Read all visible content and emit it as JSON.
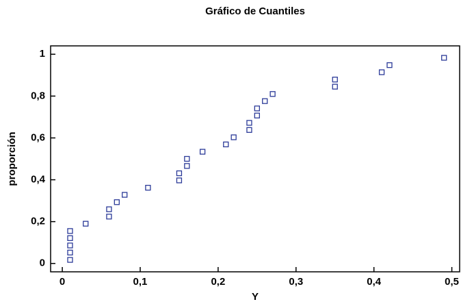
{
  "chart_data": {
    "type": "scatter",
    "title": "Gráfico de Cuantiles",
    "x_label": "Y",
    "y_label": "proporción",
    "x": [
      0.01,
      0.01,
      0.01,
      0.01,
      0.01,
      0.03,
      0.06,
      0.06,
      0.07,
      0.08,
      0.11,
      0.15,
      0.15,
      0.16,
      0.16,
      0.18,
      0.21,
      0.22,
      0.24,
      0.24,
      0.25,
      0.25,
      0.26,
      0.27,
      0.35,
      0.35,
      0.41,
      0.42,
      0.49
    ],
    "values": [
      0.017,
      0.052,
      0.086,
      0.121,
      0.155,
      0.19,
      0.224,
      0.259,
      0.293,
      0.328,
      0.362,
      0.397,
      0.431,
      0.466,
      0.5,
      0.534,
      0.569,
      0.603,
      0.638,
      0.672,
      0.707,
      0.741,
      0.776,
      0.81,
      0.845,
      0.879,
      0.914,
      0.948,
      0.983
    ],
    "color": "#2b3a98",
    "xlim": [
      -0.015,
      0.51
    ],
    "ylim": [
      -0.04,
      1.04
    ],
    "xticks": [
      0,
      {
        "value": 0.1,
        "label": "0,1"
      },
      {
        "value": 0.2,
        "label": "0,2"
      },
      {
        "value": 0.3,
        "label": "0,3"
      },
      {
        "value": 0.4,
        "label": "0,4"
      },
      {
        "value": 0.5,
        "label": "0,5"
      }
    ],
    "yticks": [
      0,
      {
        "value": 0.2,
        "label": "0,2"
      },
      {
        "value": 0.4,
        "label": "0,4"
      },
      {
        "value": 0.6,
        "label": "0,6"
      },
      {
        "value": 0.8,
        "label": "0,8"
      },
      1
    ]
  }
}
